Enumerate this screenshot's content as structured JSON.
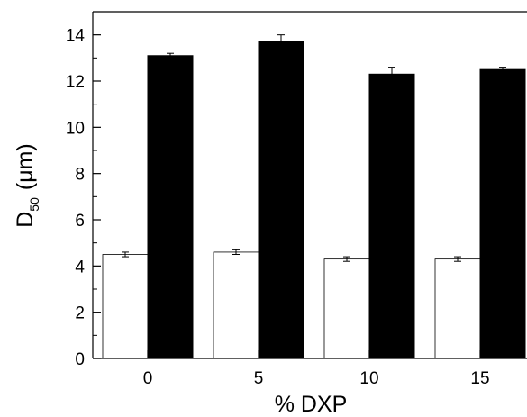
{
  "chart_data": {
    "type": "bar",
    "categories": [
      "0",
      "5",
      "10",
      "15"
    ],
    "series": [
      {
        "values": [
          4.5,
          4.6,
          4.3,
          4.3
        ],
        "errors": [
          0.1,
          0.1,
          0.1,
          0.1
        ],
        "color": "#ffffff"
      },
      {
        "values": [
          13.1,
          13.7,
          12.3,
          12.5
        ],
        "errors": [
          0.1,
          0.3,
          0.3,
          0.1
        ],
        "color": "#000000"
      }
    ],
    "xlabel": "% DXP",
    "ylabel": {
      "main": "D",
      "subscript": "50",
      "unit": "(μm)"
    },
    "yticks": [
      "0",
      "2",
      "4",
      "6",
      "8",
      "10",
      "12",
      "14"
    ],
    "ylim": [
      0,
      15
    ],
    "grid": false,
    "legend": "none"
  }
}
